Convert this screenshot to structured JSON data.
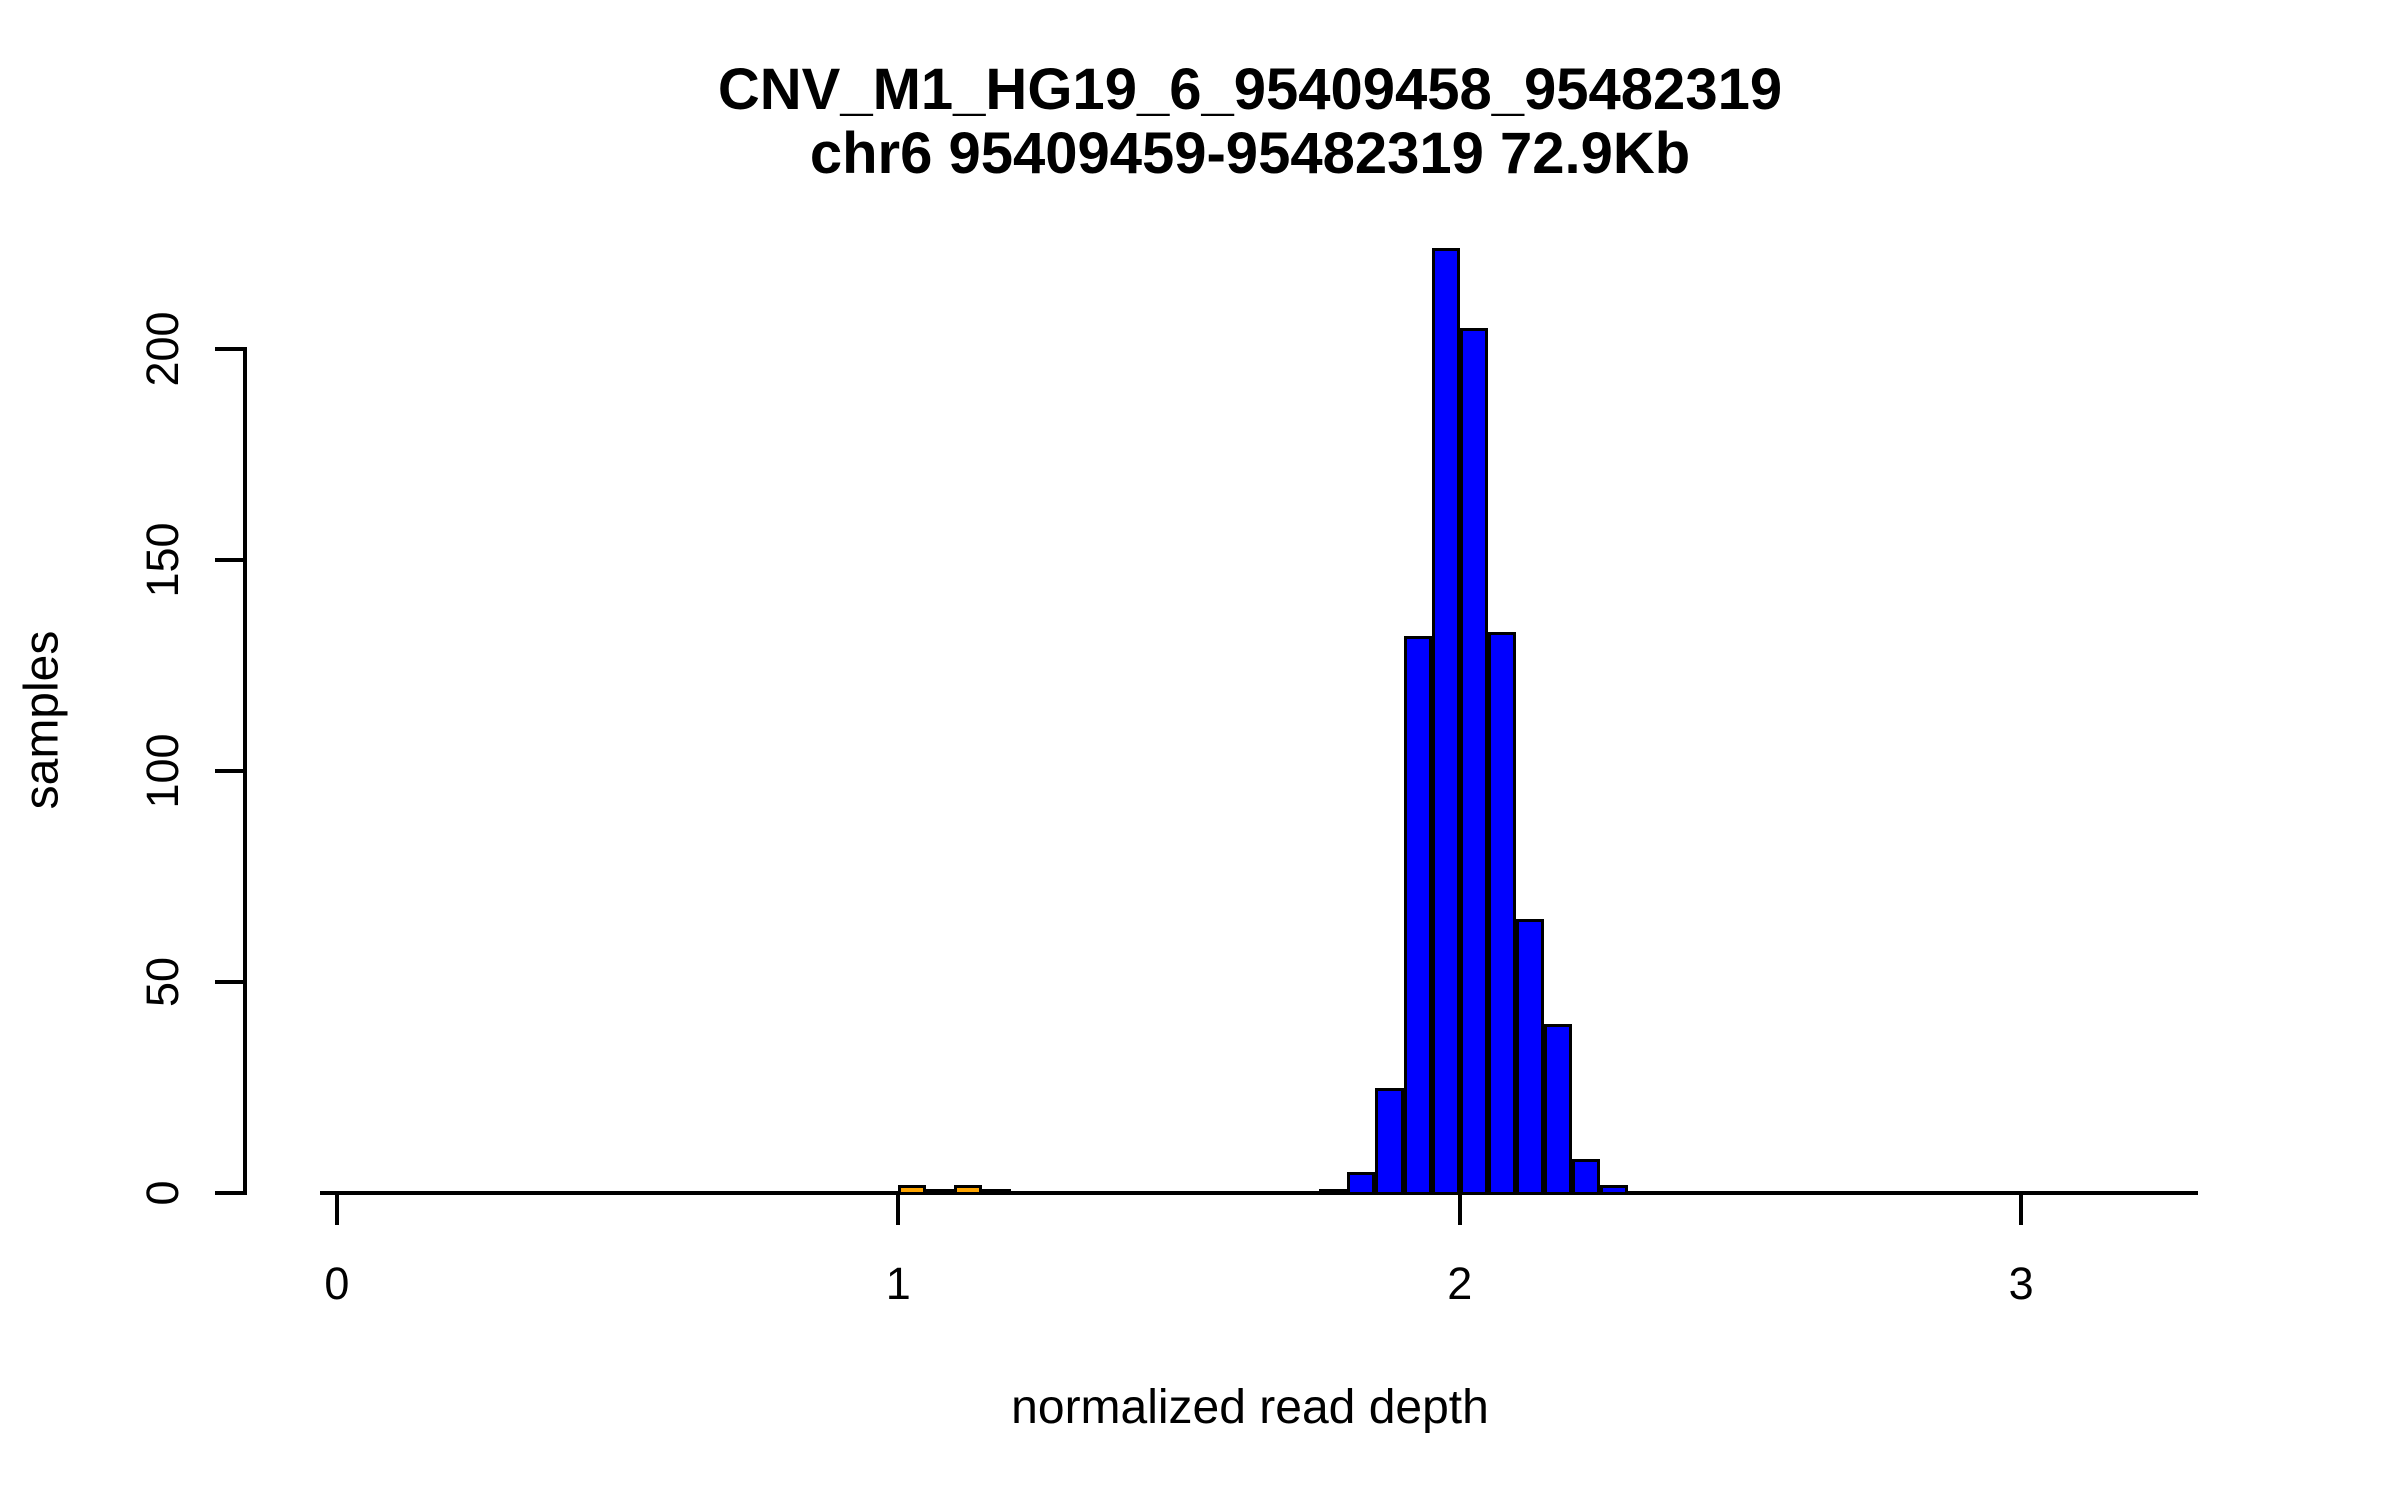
{
  "page": {
    "background": "#ffffff"
  },
  "chart_data": {
    "type": "bar",
    "subtype": "histogram",
    "title_line1": "CNV_M1_HG19_6_95409458_95482319",
    "title_line2": "chr6 95409459-95482319 72.9Kb",
    "xlabel": "normalized read depth",
    "ylabel": "samples",
    "x_ticks": [
      0,
      1,
      2,
      3
    ],
    "y_ticks": [
      0,
      50,
      100,
      150,
      200
    ],
    "xlim": [
      -0.03,
      3.315
    ],
    "ylim": [
      0,
      235
    ],
    "grid": false,
    "legend": "none",
    "bin_width": 0.05,
    "colors": {
      "normal": "#0000FF",
      "carrier": "#FFA500",
      "axis": "#000000",
      "text": "#000000"
    },
    "bins": [
      {
        "x0": 1.0,
        "x1": 1.05,
        "count": 2,
        "group": "carrier"
      },
      {
        "x0": 1.05,
        "x1": 1.1,
        "count": 1,
        "group": "carrier"
      },
      {
        "x0": 1.1,
        "x1": 1.15,
        "count": 2,
        "group": "carrier"
      },
      {
        "x0": 1.15,
        "x1": 1.2,
        "count": 1,
        "group": "carrier"
      },
      {
        "x0": 1.75,
        "x1": 1.8,
        "count": 1,
        "group": "normal"
      },
      {
        "x0": 1.8,
        "x1": 1.85,
        "count": 5,
        "group": "normal"
      },
      {
        "x0": 1.85,
        "x1": 1.9,
        "count": 25,
        "group": "normal"
      },
      {
        "x0": 1.9,
        "x1": 1.95,
        "count": 132,
        "group": "normal"
      },
      {
        "x0": 1.95,
        "x1": 2.0,
        "count": 224,
        "group": "normal"
      },
      {
        "x0": 2.0,
        "x1": 2.05,
        "count": 205,
        "group": "normal"
      },
      {
        "x0": 2.05,
        "x1": 2.1,
        "count": 133,
        "group": "normal"
      },
      {
        "x0": 2.1,
        "x1": 2.15,
        "count": 65,
        "group": "normal"
      },
      {
        "x0": 2.15,
        "x1": 2.2,
        "count": 40,
        "group": "normal"
      },
      {
        "x0": 2.2,
        "x1": 2.25,
        "count": 8,
        "group": "normal"
      },
      {
        "x0": 2.25,
        "x1": 2.3,
        "count": 2,
        "group": "normal"
      }
    ]
  }
}
